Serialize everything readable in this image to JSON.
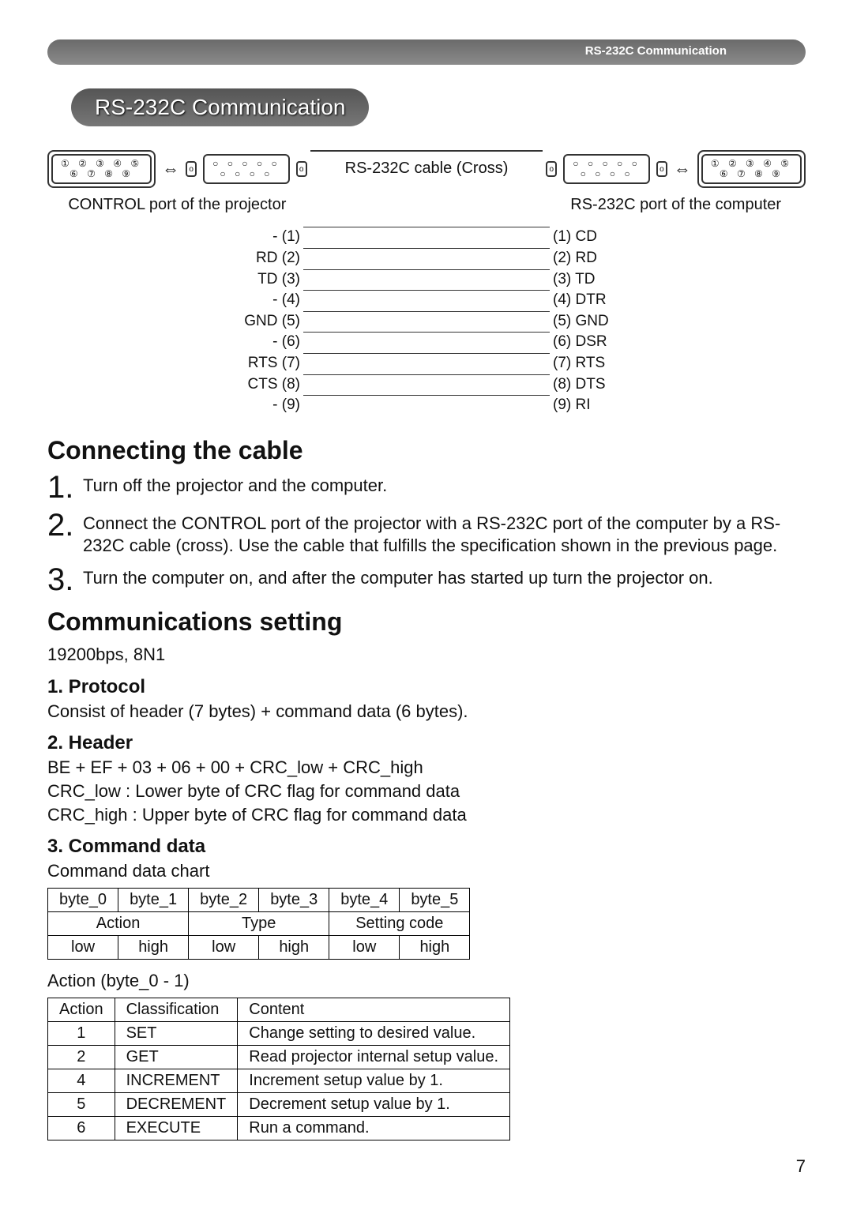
{
  "header": {
    "tab_label": "RS-232C Communication"
  },
  "title": "RS-232C Communication",
  "connectors": {
    "left_pins_top": "① ② ③ ④ ⑤",
    "left_pins_bot": "⑥ ⑦ ⑧ ⑨",
    "mid_pins_top": "○ ○ ○ ○ ○",
    "mid_pins_bot": "○ ○ ○ ○",
    "left_label": "CONTROL port of the projector",
    "mid_label": "RS-232C cable (Cross)",
    "right_label": "RS-232C port of the computer",
    "arrow": "⇔"
  },
  "pinout": [
    {
      "l": "- (1)",
      "r": "(1) CD"
    },
    {
      "l": "RD (2)",
      "r": "(2) RD"
    },
    {
      "l": "TD (3)",
      "r": "(3) TD"
    },
    {
      "l": "- (4)",
      "r": "(4) DTR"
    },
    {
      "l": "GND (5)",
      "r": "(5) GND"
    },
    {
      "l": "- (6)",
      "r": "(6) DSR"
    },
    {
      "l": "RTS (7)",
      "r": "(7) RTS"
    },
    {
      "l": "CTS (8)",
      "r": "(8) DTS"
    },
    {
      "l": "- (9)",
      "r": "(9) RI"
    }
  ],
  "section1": {
    "heading": "Connecting the cable",
    "steps": [
      {
        "n": "1.",
        "t": "Turn off the projector and the computer."
      },
      {
        "n": "2.",
        "t": "Connect the CONTROL port of the projector with a RS-232C port of the computer by a RS-232C cable (cross). Use the cable that fulfills the specification shown in the previous page."
      },
      {
        "n": "3.",
        "t": "Turn the computer on, and after the computer has started up turn the projector on."
      }
    ]
  },
  "section2": {
    "heading": "Communications setting",
    "setting": "19200bps, 8N1",
    "protocol_h": "1. Protocol",
    "protocol_t": "Consist of header (7 bytes) + command data (6 bytes).",
    "header_h": "2. Header",
    "header_t1": "BE + EF + 03 + 06 + 00 + CRC_low + CRC_high",
    "header_t2": "CRC_low : Lower byte of CRC flag for command data",
    "header_t3": "CRC_high : Upper byte of CRC flag for command data",
    "cmd_h": "3. Command data",
    "cmd_sub": "Command data chart"
  },
  "cmd_table": {
    "bytes": [
      "byte_0",
      "byte_1",
      "byte_2",
      "byte_3",
      "byte_4",
      "byte_5"
    ],
    "groups": [
      "Action",
      "Type",
      "Setting code"
    ],
    "hl": [
      "low",
      "high",
      "low",
      "high",
      "low",
      "high"
    ]
  },
  "action_label": "Action (byte_0 - 1)",
  "action_table": {
    "headers": [
      "Action",
      "Classification",
      "Content"
    ],
    "rows": [
      [
        "1",
        "SET",
        "Change setting to desired value."
      ],
      [
        "2",
        "GET",
        "Read projector internal setup value."
      ],
      [
        "4",
        "INCREMENT",
        "Increment setup value by 1."
      ],
      [
        "5",
        "DECREMENT",
        "Decrement setup value by 1."
      ],
      [
        "6",
        "EXECUTE",
        "Run a command."
      ]
    ]
  },
  "page_number": "7"
}
